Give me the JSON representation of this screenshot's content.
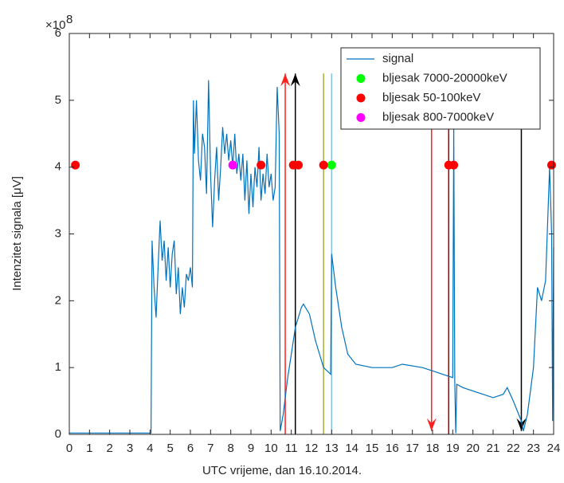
{
  "chart_data": {
    "type": "line",
    "x_label": "UTC vrijeme, dan 16.10.2014.",
    "y_label": "Intenzitet signala [μV]",
    "y_exponent_base": "×10",
    "y_exponent": "8",
    "xlim": [
      0,
      24
    ],
    "ylim": [
      0,
      6
    ],
    "xticks": [
      0,
      1,
      2,
      3,
      4,
      5,
      6,
      7,
      8,
      9,
      10,
      11,
      12,
      13,
      14,
      15,
      16,
      17,
      18,
      19,
      20,
      21,
      22,
      23,
      24
    ],
    "yticks": [
      0,
      1,
      2,
      3,
      4,
      5,
      6
    ],
    "legend": "top-right",
    "series": [
      {
        "name": "signal",
        "type": "line",
        "color": "#0072bd",
        "x": [
          0,
          1,
          2,
          3,
          4.05,
          4.1,
          4.2,
          4.3,
          4.4,
          4.5,
          4.6,
          4.7,
          4.8,
          4.9,
          5.0,
          5.1,
          5.2,
          5.3,
          5.4,
          5.5,
          5.6,
          5.7,
          5.8,
          5.9,
          6.0,
          6.1,
          6.15,
          6.2,
          6.3,
          6.4,
          6.5,
          6.6,
          6.7,
          6.8,
          6.9,
          7.0,
          7.1,
          7.2,
          7.3,
          7.4,
          7.5,
          7.6,
          7.7,
          7.8,
          7.9,
          8.0,
          8.1,
          8.2,
          8.3,
          8.4,
          8.5,
          8.6,
          8.7,
          8.8,
          8.9,
          9.0,
          9.1,
          9.2,
          9.3,
          9.4,
          9.5,
          9.6,
          9.7,
          9.8,
          9.9,
          10.0,
          10.1,
          10.2,
          10.3,
          10.4,
          10.45,
          10.6,
          10.8,
          11.0,
          11.2,
          11.5,
          11.6,
          11.9,
          12.2,
          12.6,
          12.95,
          13.0,
          13.2,
          13.5,
          13.8,
          14.2,
          15.0,
          16.0,
          16.5,
          17.5,
          18.0,
          18.5,
          19.0,
          19.05,
          19.1,
          19.15,
          19.2,
          19.5,
          20.5,
          21.0,
          21.5,
          21.7,
          22.0,
          22.4,
          22.5,
          22.7,
          23.0,
          23.2,
          23.4,
          23.6,
          23.8,
          23.9,
          23.95,
          24.0
        ],
        "values": [
          0.02,
          0.02,
          0.02,
          0.02,
          0.02,
          2.9,
          2.2,
          1.75,
          2.5,
          3.2,
          2.6,
          2.9,
          2.3,
          2.8,
          2.2,
          2.7,
          2.9,
          2.1,
          2.5,
          1.8,
          2.2,
          1.9,
          2.4,
          2.3,
          2.5,
          2.2,
          5.0,
          4.2,
          5.0,
          4.1,
          3.8,
          4.5,
          4.3,
          3.6,
          5.3,
          3.9,
          3.1,
          3.8,
          4.3,
          3.5,
          4.0,
          4.6,
          4.2,
          4.5,
          4.1,
          4.4,
          4.0,
          4.5,
          3.9,
          4.2,
          3.8,
          4.2,
          3.5,
          4.1,
          3.3,
          3.9,
          3.4,
          4.0,
          3.7,
          4.3,
          3.5,
          3.9,
          3.6,
          4.2,
          3.7,
          3.9,
          3.5,
          3.7,
          5.2,
          4.5,
          0.05,
          0.3,
          0.8,
          1.2,
          1.6,
          1.9,
          1.95,
          1.8,
          1.4,
          1.0,
          0.9,
          2.7,
          2.2,
          1.6,
          1.2,
          1.05,
          1.0,
          1.0,
          1.05,
          1.0,
          0.95,
          0.9,
          0.85,
          4.6,
          0.8,
          0.02,
          0.75,
          0.7,
          0.6,
          0.55,
          0.6,
          0.7,
          0.5,
          0.2,
          0.05,
          0.3,
          1.0,
          2.2,
          2.0,
          2.3,
          4.0,
          3.0,
          0.2,
          2.8
        ]
      },
      {
        "name": "bljesak 7000-20000keV",
        "type": "scatter",
        "color": "#00ff00",
        "x": [
          13.0
        ],
        "values": [
          4.03
        ]
      },
      {
        "name": "bljesak 50-100keV",
        "type": "scatter",
        "color": "#ff0000",
        "x": [
          0.3,
          9.5,
          11.1,
          11.35,
          12.6,
          18.8,
          19.05,
          23.9
        ],
        "values": [
          4.03,
          4.03,
          4.03,
          4.03,
          4.03,
          4.03,
          4.03,
          4.03
        ]
      },
      {
        "name": "bljesak 800-7000keV",
        "type": "scatter",
        "color": "#ff00ff",
        "x": [
          8.1
        ],
        "values": [
          4.03
        ]
      }
    ],
    "vertical_lines": [
      {
        "x": 10.7,
        "y1": 0,
        "y2": 5.4,
        "color": "#ff2020",
        "arrow": "end"
      },
      {
        "x": 11.2,
        "y1": 0,
        "y2": 5.4,
        "color": "#000000",
        "arrow": "end"
      },
      {
        "x": 12.6,
        "y1": 0,
        "y2": 5.4,
        "color": "#a6b040"
      },
      {
        "x": 13.0,
        "y1": 0,
        "y2": 5.4,
        "color": "#80c0e0"
      },
      {
        "x": 17.95,
        "y1": 5.3,
        "y2": 0.05,
        "color": "#ff2020",
        "arrow": "end"
      },
      {
        "x": 18.8,
        "y1": 0,
        "y2": 4.9,
        "color": "#a00000"
      },
      {
        "x": 22.4,
        "y1": 5.2,
        "y2": 0.05,
        "color": "#000000",
        "arrow": "end"
      }
    ]
  }
}
